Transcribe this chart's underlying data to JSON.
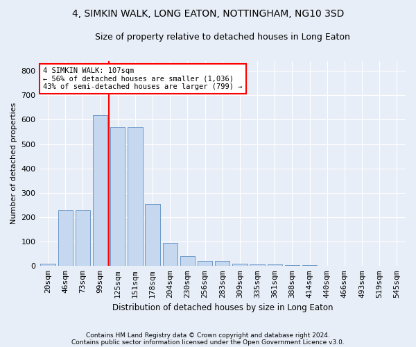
{
  "title": "4, SIMKIN WALK, LONG EATON, NOTTINGHAM, NG10 3SD",
  "subtitle": "Size of property relative to detached houses in Long Eaton",
  "xlabel": "Distribution of detached houses by size in Long Eaton",
  "ylabel": "Number of detached properties",
  "footnote1": "Contains HM Land Registry data © Crown copyright and database right 2024.",
  "footnote2": "Contains public sector information licensed under the Open Government Licence v3.0.",
  "bar_labels": [
    "20sqm",
    "46sqm",
    "73sqm",
    "99sqm",
    "125sqm",
    "151sqm",
    "178sqm",
    "204sqm",
    "230sqm",
    "256sqm",
    "283sqm",
    "309sqm",
    "335sqm",
    "361sqm",
    "388sqm",
    "414sqm",
    "440sqm",
    "466sqm",
    "493sqm",
    "519sqm",
    "545sqm"
  ],
  "bar_values": [
    10,
    228,
    228,
    619,
    570,
    570,
    254,
    96,
    42,
    20,
    20,
    10,
    7,
    7,
    5,
    3,
    0,
    0,
    0,
    0,
    0
  ],
  "bar_color": "#c5d8f0",
  "bar_edge_color": "#5b8dc0",
  "background_color": "#e8eef7",
  "grid_color": "#ffffff",
  "vline_color": "red",
  "vline_pos": 3.5,
  "annotation_text": "4 SIMKIN WALK: 107sqm\n← 56% of detached houses are smaller (1,036)\n43% of semi-detached houses are larger (799) →",
  "annotation_box_color": "white",
  "annotation_box_edge": "red",
  "ylim": [
    0,
    840
  ],
  "yticks": [
    0,
    100,
    200,
    300,
    400,
    500,
    600,
    700,
    800
  ],
  "title_fontsize": 10,
  "subtitle_fontsize": 9
}
